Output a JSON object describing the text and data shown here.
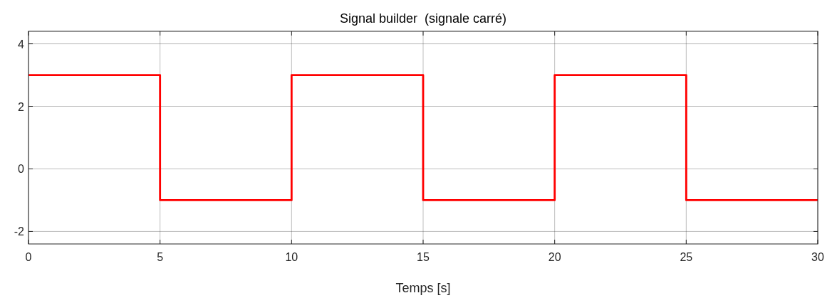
{
  "chart_data": {
    "type": "step",
    "title": "Signal builder  (signale carré)",
    "xlabel": "Temps [s]",
    "x": [
      0,
      5,
      10,
      15,
      20,
      25,
      30
    ],
    "series": [
      {
        "color": "#ff0000",
        "values": [
          3,
          -1,
          3,
          -1,
          3,
          -1,
          -1
        ]
      }
    ],
    "xlim": [
      0,
      30
    ],
    "xticks": [
      0,
      5,
      10,
      15,
      20,
      25,
      30
    ],
    "ylim": [
      -2.4,
      4.4
    ],
    "yticks": [
      -2,
      0,
      2,
      4
    ],
    "grid": true
  }
}
